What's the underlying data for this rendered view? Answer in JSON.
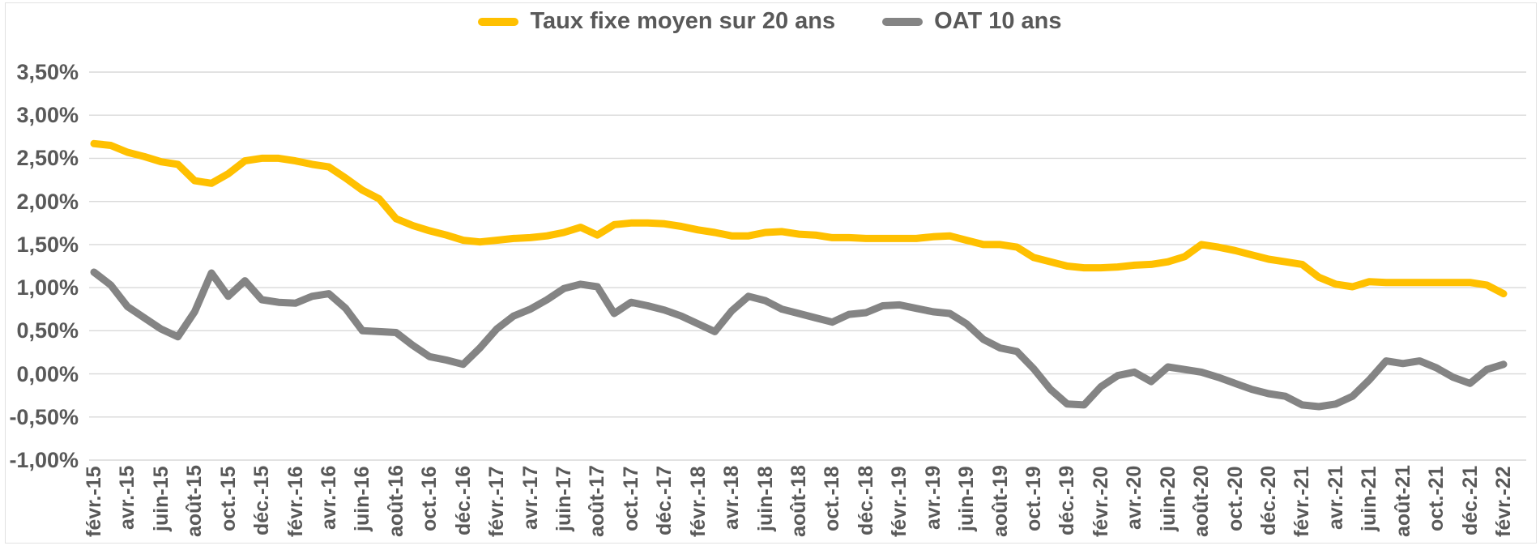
{
  "legend": {
    "items": [
      {
        "label": "Taux fixe moyen sur 20 ans",
        "color": "#FFC000"
      },
      {
        "label": "OAT 10 ans",
        "color": "#848484"
      }
    ]
  },
  "colors": {
    "accent_yellow": "#FFC000",
    "series_gray": "#848484",
    "text": "#595959",
    "gridline": "#D9D9D9",
    "background": "#FFFFFF"
  },
  "chart_data": {
    "type": "line",
    "title": "",
    "xlabel": "",
    "ylabel": "",
    "ylim": [
      -1.0,
      3.5
    ],
    "grid": "horizontal",
    "legend_position": "top-center",
    "x": [
      "févr.-15",
      "mars-15",
      "avr.-15",
      "mai-15",
      "juin-15",
      "juil.-15",
      "août-15",
      "sept.-15",
      "oct.-15",
      "nov.-15",
      "déc.-15",
      "janv.-16",
      "févr.-16",
      "mars-16",
      "avr.-16",
      "mai-16",
      "juin-16",
      "juil.-16",
      "août-16",
      "sept.-16",
      "oct.-16",
      "nov.-16",
      "déc.-16",
      "janv.-17",
      "févr.-17",
      "mars-17",
      "avr.-17",
      "mai-17",
      "juin-17",
      "juil.-17",
      "août-17",
      "sept.-17",
      "oct.-17",
      "nov.-17",
      "déc.-17",
      "janv.-18",
      "févr.-18",
      "mars-18",
      "avr.-18",
      "mai-18",
      "juin-18",
      "juil.-18",
      "août-18",
      "sept.-18",
      "oct.-18",
      "nov.-18",
      "déc.-18",
      "janv.-19",
      "févr.-19",
      "mars-19",
      "avr.-19",
      "mai-19",
      "juin-19",
      "juil.-19",
      "août-19",
      "sept.-19",
      "oct.-19",
      "nov.-19",
      "déc.-19",
      "janv.-20",
      "févr.-20",
      "mars-20",
      "avr.-20",
      "mai-20",
      "juin-20",
      "juil.-20",
      "août-20",
      "sept.-20",
      "oct.-20",
      "nov.-20",
      "déc.-20",
      "janv.-21",
      "févr.-21",
      "mars-21",
      "avr.-21",
      "mai-21",
      "juin-21",
      "juil.-21",
      "août-21",
      "sept.-21",
      "oct.-21",
      "nov.-21",
      "déc.-21",
      "janv.-22",
      "févr.-22"
    ],
    "series": [
      {
        "name": "Taux fixe moyen sur 20 ans",
        "color": "#FFC000",
        "values": [
          2.67,
          2.65,
          2.57,
          2.52,
          2.46,
          2.43,
          2.24,
          2.21,
          2.32,
          2.47,
          2.5,
          2.5,
          2.47,
          2.43,
          2.4,
          2.27,
          2.13,
          2.03,
          1.8,
          1.72,
          1.66,
          1.61,
          1.55,
          1.53,
          1.55,
          1.57,
          1.58,
          1.6,
          1.64,
          1.7,
          1.61,
          1.73,
          1.75,
          1.75,
          1.74,
          1.71,
          1.67,
          1.64,
          1.6,
          1.6,
          1.64,
          1.65,
          1.62,
          1.61,
          1.58,
          1.58,
          1.57,
          1.57,
          1.57,
          1.57,
          1.59,
          1.6,
          1.55,
          1.5,
          1.5,
          1.47,
          1.35,
          1.3,
          1.25,
          1.23,
          1.23,
          1.24,
          1.26,
          1.27,
          1.3,
          1.36,
          1.5,
          1.47,
          1.43,
          1.38,
          1.33,
          1.3,
          1.27,
          1.12,
          1.04,
          1.01,
          1.07,
          1.06,
          1.06,
          1.06,
          1.06,
          1.06,
          1.06,
          1.03,
          0.93
        ]
      },
      {
        "name": "OAT 10 ans",
        "color": "#848484",
        "values": [
          1.18,
          1.03,
          0.78,
          0.65,
          0.52,
          0.43,
          0.72,
          1.17,
          0.9,
          1.08,
          0.86,
          0.83,
          0.82,
          0.9,
          0.93,
          0.76,
          0.5,
          0.49,
          0.48,
          0.33,
          0.2,
          0.16,
          0.11,
          0.3,
          0.52,
          0.67,
          0.75,
          0.86,
          0.99,
          1.04,
          1.01,
          0.7,
          0.83,
          0.79,
          0.74,
          0.67,
          0.58,
          0.49,
          0.73,
          0.9,
          0.85,
          0.75,
          0.7,
          0.65,
          0.6,
          0.69,
          0.71,
          0.79,
          0.8,
          0.76,
          0.72,
          0.7,
          0.58,
          0.4,
          0.3,
          0.26,
          0.06,
          -0.18,
          -0.35,
          -0.36,
          -0.15,
          -0.02,
          0.02,
          -0.09,
          0.08,
          0.05,
          0.02,
          -0.04,
          -0.11,
          -0.18,
          -0.23,
          -0.26,
          -0.36,
          -0.38,
          -0.35,
          -0.26,
          -0.07,
          0.15,
          0.12,
          0.15,
          0.07,
          -0.04,
          -0.11,
          0.05,
          0.11
        ]
      }
    ],
    "y_ticks": [
      {
        "label": "3,50%",
        "value": 3.5
      },
      {
        "label": "3,00%",
        "value": 3.0
      },
      {
        "label": "2,50%",
        "value": 2.5
      },
      {
        "label": "2,00%",
        "value": 2.0
      },
      {
        "label": "1,50%",
        "value": 1.5
      },
      {
        "label": "1,00%",
        "value": 1.0
      },
      {
        "label": "0,50%",
        "value": 0.5
      },
      {
        "label": "0,00%",
        "value": 0.0
      },
      {
        "label": "-0,50%",
        "value": -0.5
      },
      {
        "label": "-1,00%",
        "value": -1.0
      }
    ],
    "x_tick_step": 2,
    "x_tick_labels": [
      "févr.-15",
      "avr.-15",
      "juin-15",
      "août-15",
      "oct.-15",
      "déc.-15",
      "févr.-16",
      "avr.-16",
      "juin-16",
      "août-16",
      "oct.-16",
      "déc.-16",
      "févr.-17",
      "avr.-17",
      "juin-17",
      "août-17",
      "oct.-17",
      "déc.-17",
      "févr.-18",
      "avr.-18",
      "juin-18",
      "août-18",
      "oct.-18",
      "déc.-18",
      "févr.-19",
      "avr.-19",
      "juin-19",
      "août-19",
      "oct.-19",
      "déc.-19",
      "févr.-20",
      "avr.-20",
      "juin-20",
      "août-20",
      "oct.-20",
      "déc.-20",
      "févr.-21",
      "avr.-21",
      "juin-21",
      "août-21",
      "oct.-21",
      "déc.-21",
      "févr.-22"
    ]
  }
}
